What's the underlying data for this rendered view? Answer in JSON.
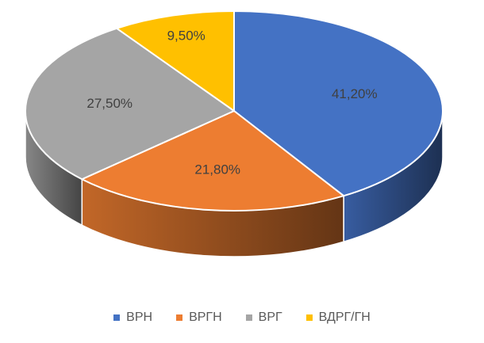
{
  "chart_data": {
    "type": "pie",
    "title": "",
    "categories": [
      "ВРН",
      "ВРГН",
      "ВРГ",
      "ВДРГ/ГН"
    ],
    "values": [
      41.2,
      21.8,
      27.5,
      9.5
    ],
    "value_labels": [
      "41,20%",
      "21,80%",
      "27,50%",
      "9,50%"
    ],
    "unit": "%",
    "colors": [
      "#4472C4",
      "#ED7D31",
      "#A5A5A5",
      "#FFC000"
    ],
    "three_d": true,
    "start_angle": "12 o'clock",
    "direction": "clockwise",
    "legend_position": "bottom"
  }
}
